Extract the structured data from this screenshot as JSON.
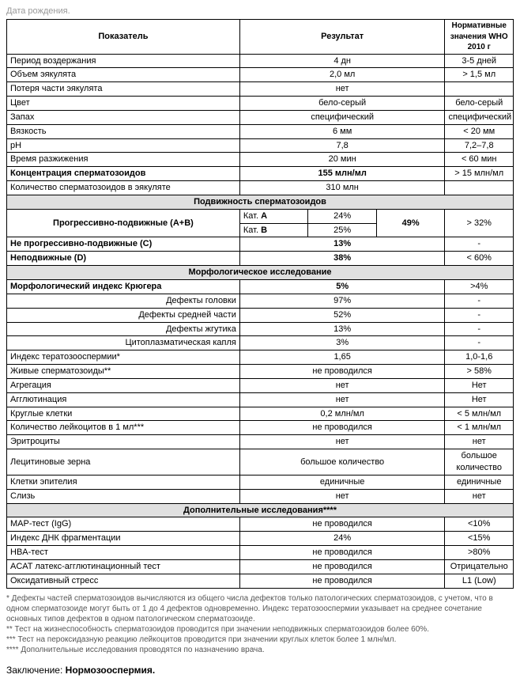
{
  "top_label": "Дата рождения.",
  "headers": {
    "indicator": "Показатель",
    "result": "Результат",
    "normative": "Нормативные значения WHO  2010 г"
  },
  "sections": {
    "initial": [
      {
        "label": "Период воздержания",
        "result": "4 дн",
        "norm": "3-5 дней",
        "bold": false
      },
      {
        "label": "Объем эякулята",
        "result": "2,0 мл",
        "norm": "> 1,5 мл",
        "bold": false
      },
      {
        "label": "Потеря части эякулята",
        "result": "нет",
        "norm": "",
        "bold": false
      },
      {
        "label": "Цвет",
        "result": "бело-серый",
        "norm": "бело-серый",
        "bold": false
      },
      {
        "label": "Запах",
        "result": "специфический",
        "norm": "специфический",
        "bold": false
      },
      {
        "label": "Вязкость",
        "result": "6 мм",
        "norm": "< 20 мм",
        "bold": false
      },
      {
        "label": "pH",
        "result": "7,8",
        "norm": "7,2–7,8",
        "bold": false
      },
      {
        "label": "Время разжижения",
        "result": "20 мин",
        "norm": "< 60 мин",
        "bold": false
      },
      {
        "label": "Концентрация сперматозоидов",
        "result": "155 млн/мл",
        "norm": "> 15 млн/мл",
        "bold": true
      },
      {
        "label": "Количество сперматозоидов в эякуляте",
        "result": "310 млн",
        "norm": "",
        "bold": false
      }
    ],
    "motility": {
      "title": "Подвижность сперматозоидов",
      "progressive_label": "Прогрессивно-подвижные (А+В)",
      "catA_label": "Кат. А",
      "catA_val": "24%",
      "catB_label": "Кат. В",
      "catB_val": "25%",
      "combined": "49%",
      "combined_norm": "> 32%",
      "nonprog_label": "Не прогрессивно-подвижные (С)",
      "nonprog_val": "13%",
      "nonprog_norm": "-",
      "immotile_label": "Неподвижные (D)",
      "immotile_val": "38%",
      "immotile_norm": "< 60%"
    },
    "morphology": {
      "title": "Морфологическое исследование",
      "kruger_label": "Морфологический индекс Крюгера",
      "kruger_val": "5%",
      "kruger_norm": ">4%",
      "defects": [
        {
          "label": "Дефекты головки",
          "val": "97%",
          "norm": "-"
        },
        {
          "label": "Дефекты средней части",
          "val": "52%",
          "norm": "-"
        },
        {
          "label": "Дефекты жгутика",
          "val": "13%",
          "norm": "-"
        },
        {
          "label": "Цитоплазматическая капля",
          "val": "3%",
          "norm": "-"
        }
      ],
      "rest": [
        {
          "label": "Индекс тератозооспермии*",
          "result": "1,65",
          "norm": "1,0-1,6"
        },
        {
          "label": "Живые сперматозоиды**",
          "result": "не проводился",
          "norm": "> 58%"
        },
        {
          "label": "Агрегация",
          "result": "нет",
          "norm": "Нет"
        },
        {
          "label": "Агглютинация",
          "result": "нет",
          "norm": "Нет"
        },
        {
          "label": "Круглые клетки",
          "result": "0,2 млн/мл",
          "norm": "< 5 млн/мл"
        },
        {
          "label": "Количество лейкоцитов в 1 мл***",
          "result": "не проводился",
          "norm": "< 1 млн/мл"
        },
        {
          "label": "Эритроциты",
          "result": "нет",
          "norm": "нет"
        },
        {
          "label": "Лецитиновые зерна",
          "result": "большое количество",
          "norm": "большое количество"
        },
        {
          "label": "Клетки эпителия",
          "result": "единичные",
          "norm": "единичные"
        },
        {
          "label": "Слизь",
          "result": "нет",
          "norm": "нет"
        }
      ]
    },
    "additional": {
      "title": "Дополнительные исследования****",
      "rows": [
        {
          "label": "MAP-тест (IgG)",
          "result": "не проводился",
          "norm": "<10%"
        },
        {
          "label": "Индекс ДНК фрагментации",
          "result": "24%",
          "norm": "<15%"
        },
        {
          "label": "HBA-тест",
          "result": "не проводился",
          "norm": ">80%"
        },
        {
          "label": "ACAT латекс-агглютинационный тест",
          "result": "не проводился",
          "norm": "Отрицательно"
        },
        {
          "label": "Оксидативный стресс",
          "result": "не проводился",
          "norm": "L1 (Low)"
        }
      ]
    }
  },
  "footnotes": [
    "* Дефекты частей сперматозоидов вычисляются из общего числа дефектов только патологических сперматозоидов, с учетом, что в одном сперматозоиде могут быть от 1 до 4 дефектов одновременно. Индекс тератозооспермии указывает на среднее сочетание основных типов дефектов в одном патологическом сперматозоиде.",
    "** Тест на жизнеспособность сперматозоидов проводится при значении неподвижных сперматозоидов более 60%.",
    "*** Тест на пероксидазную реакцию лейкоцитов проводится при значении круглых клеток более 1 млн/мл.",
    "**** Дополнительные исследования проводятся по назначению врача."
  ],
  "conclusion_label": "Заключение:",
  "conclusion_value": "Нормозооспермия."
}
